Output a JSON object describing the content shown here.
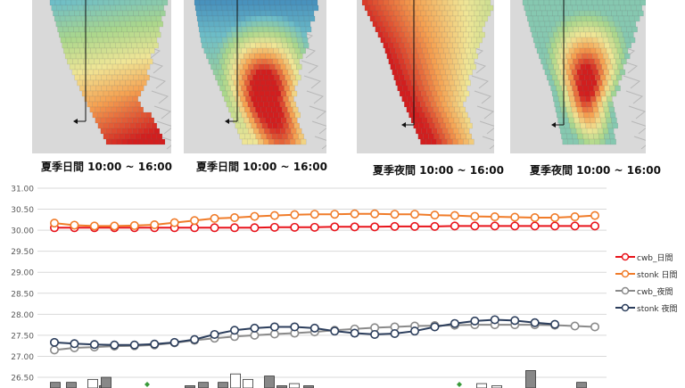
{
  "maps": [
    {
      "caption": "夏季日間 10:00 ~ 16:00",
      "scheme": "warm-south"
    },
    {
      "caption": "夏季日間 10:00 ~ 16:00",
      "scheme": "hotspot"
    },
    {
      "caption": "夏季夜間 10:00 ~ 16:00",
      "scheme": "warm-west"
    },
    {
      "caption": "夏季夜間 10:00 ~ 16:00",
      "scheme": "hotspot"
    }
  ],
  "chart_data": {
    "type": "line",
    "title": "",
    "ylim": [
      26.5,
      31.0
    ],
    "yticks": [
      "31.00",
      "30.50",
      "30.00",
      "29.50",
      "29.00",
      "28.50",
      "28.00",
      "27.50",
      "27.00",
      "26.50"
    ],
    "grid": true,
    "legend_position": "right",
    "series": [
      {
        "name": "cwb_日間",
        "color": "#e8141b",
        "values": [
          30.06,
          30.06,
          30.06,
          30.06,
          30.06,
          30.06,
          30.06,
          30.06,
          30.06,
          30.06,
          30.06,
          30.07,
          30.07,
          30.07,
          30.08,
          30.08,
          30.08,
          30.09,
          30.09,
          30.09,
          30.1,
          30.1,
          30.1,
          30.1,
          30.1,
          30.1,
          30.1,
          30.1
        ]
      },
      {
        "name": "stonk 日間",
        "color": "#f07c2a",
        "values": [
          30.17,
          30.12,
          30.1,
          30.1,
          30.11,
          30.13,
          30.18,
          30.23,
          30.28,
          30.3,
          30.33,
          30.35,
          30.37,
          30.38,
          30.38,
          30.39,
          30.39,
          30.38,
          30.38,
          30.36,
          30.35,
          30.33,
          30.32,
          30.31,
          30.3,
          30.3,
          30.32,
          30.35
        ]
      },
      {
        "name": "cwb_夜間",
        "color": "#8a8a8a",
        "values": [
          27.15,
          27.2,
          27.22,
          27.24,
          27.25,
          27.27,
          27.32,
          27.38,
          27.43,
          27.47,
          27.5,
          27.53,
          27.55,
          27.58,
          27.62,
          27.65,
          27.68,
          27.7,
          27.72,
          27.73,
          27.74,
          27.75,
          27.75,
          27.75,
          27.75,
          27.74,
          27.72,
          27.7
        ]
      },
      {
        "name": "stonk 夜間",
        "color": "#2c3e5c",
        "values": [
          27.33,
          27.3,
          27.28,
          27.27,
          27.27,
          27.29,
          27.33,
          27.4,
          27.52,
          27.62,
          27.67,
          27.7,
          27.7,
          27.67,
          27.6,
          27.55,
          27.52,
          27.54,
          27.6,
          27.7,
          27.78,
          27.84,
          27.87,
          27.85,
          27.8,
          27.76
        ]
      }
    ],
    "bars": [
      {
        "fill": "#888888",
        "value": 26.38
      },
      {
        "fill": "#888888",
        "value": 26.38
      },
      {
        "fill": "#ffffff",
        "value": 26.45
      },
      {
        "fill": "#888888",
        "value": 26.3
      },
      {
        "fill": "#888888",
        "value": 26.5
      },
      {
        "fill": "#888888",
        "value": 26.3
      },
      {
        "fill": "#888888",
        "value": 26.38
      },
      {
        "fill": "#888888",
        "value": 26.38
      },
      {
        "fill": "#ffffff",
        "value": 26.58
      },
      {
        "fill": "#ffffff",
        "value": 26.45
      },
      {
        "fill": "#888888",
        "value": 26.53
      },
      {
        "fill": "#888888",
        "value": 26.3
      },
      {
        "fill": "#ffffff",
        "value": 26.35
      },
      {
        "fill": "#888888",
        "value": 26.3
      },
      {
        "fill": "#ffffff",
        "value": 26.35
      },
      {
        "fill": "#ffffff",
        "value": 26.3
      },
      {
        "fill": "#888888",
        "value": 26.66
      },
      {
        "fill": "#888888",
        "value": 26.38
      }
    ]
  }
}
